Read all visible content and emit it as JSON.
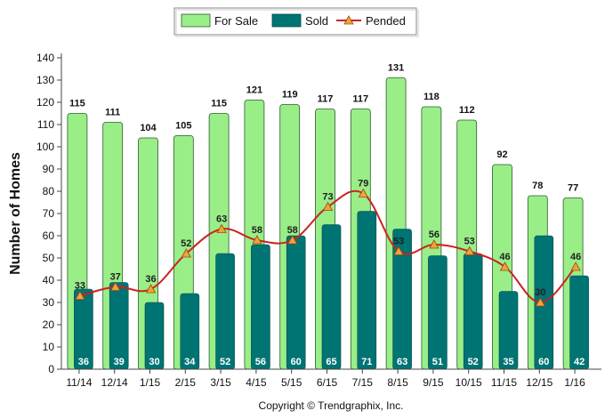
{
  "chart_data": {
    "type": "bar",
    "ylabel": "Number of Homes",
    "ylim": [
      0,
      140
    ],
    "yticks": [
      0,
      10,
      20,
      30,
      40,
      50,
      60,
      70,
      80,
      90,
      100,
      110,
      120,
      130,
      140
    ],
    "categories": [
      "11/14",
      "12/14",
      "1/15",
      "2/15",
      "3/15",
      "4/15",
      "5/15",
      "6/15",
      "7/15",
      "8/15",
      "9/15",
      "10/15",
      "11/15",
      "12/15",
      "1/16"
    ],
    "series": [
      {
        "name": "For Sale",
        "type": "bar",
        "color": "#99ee88",
        "values": [
          115,
          111,
          104,
          105,
          115,
          121,
          119,
          117,
          117,
          131,
          118,
          112,
          92,
          78,
          77
        ]
      },
      {
        "name": "Sold",
        "type": "bar",
        "color": "#007373",
        "values": [
          36,
          39,
          30,
          34,
          52,
          56,
          60,
          65,
          71,
          63,
          51,
          52,
          35,
          60,
          42
        ]
      },
      {
        "name": "Pended",
        "type": "line",
        "color": "#cc2222",
        "marker_color": "#e8a838",
        "values": [
          33,
          37,
          36,
          52,
          63,
          58,
          58,
          73,
          79,
          53,
          56,
          53,
          46,
          30,
          46
        ]
      }
    ],
    "legend": "top-center",
    "grid": false
  },
  "copyright": "Copyright © Trendgraphix, Inc."
}
